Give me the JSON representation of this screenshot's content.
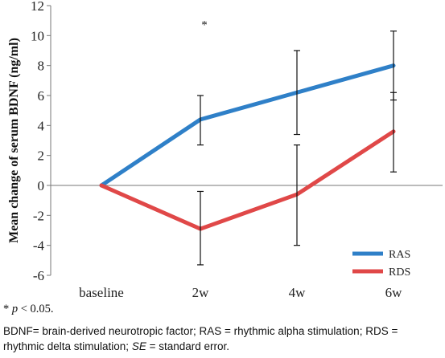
{
  "chart_data": {
    "type": "line",
    "categories": [
      "baseline",
      "2w",
      "4w",
      "6w"
    ],
    "ylabel": "Mean change of serum BDNF (ng/ml)",
    "ylim": [
      -6,
      12
    ],
    "yticks": [
      "12",
      "10",
      "8",
      "6",
      "4",
      "2",
      "0",
      "-2",
      "-4",
      "-6"
    ],
    "grid": false,
    "legend_position": "bottom-right",
    "series": [
      {
        "name": "RAS",
        "color": "#2f80c8",
        "values": [
          0,
          4.4,
          6.2,
          8.0
        ],
        "error_low": [
          0,
          2.7,
          3.4,
          5.7
        ],
        "error_high": [
          0,
          6.0,
          9.0,
          10.3
        ]
      },
      {
        "name": "RDS",
        "color": "#e04848",
        "values": [
          0,
          -2.9,
          -0.6,
          3.6
        ],
        "error_low": [
          0,
          -5.3,
          -4.0,
          0.9
        ],
        "error_high": [
          0,
          -0.4,
          2.7,
          6.2
        ]
      }
    ],
    "annotations": [
      {
        "text": "*",
        "category": "2w",
        "y": 10.7
      }
    ]
  },
  "notes": {
    "significance_star": "*",
    "significance_p": "p",
    "significance_rest": " < 0.05.",
    "abbrev_line1": "BDNF= brain-derived neurotropic factor; RAS = rhythmic alpha stimulation; RDS =",
    "abbrev_line2_a": "rhythmic delta stimulation; ",
    "abbrev_line2_se": "SE",
    "abbrev_line2_b": " = standard error."
  }
}
